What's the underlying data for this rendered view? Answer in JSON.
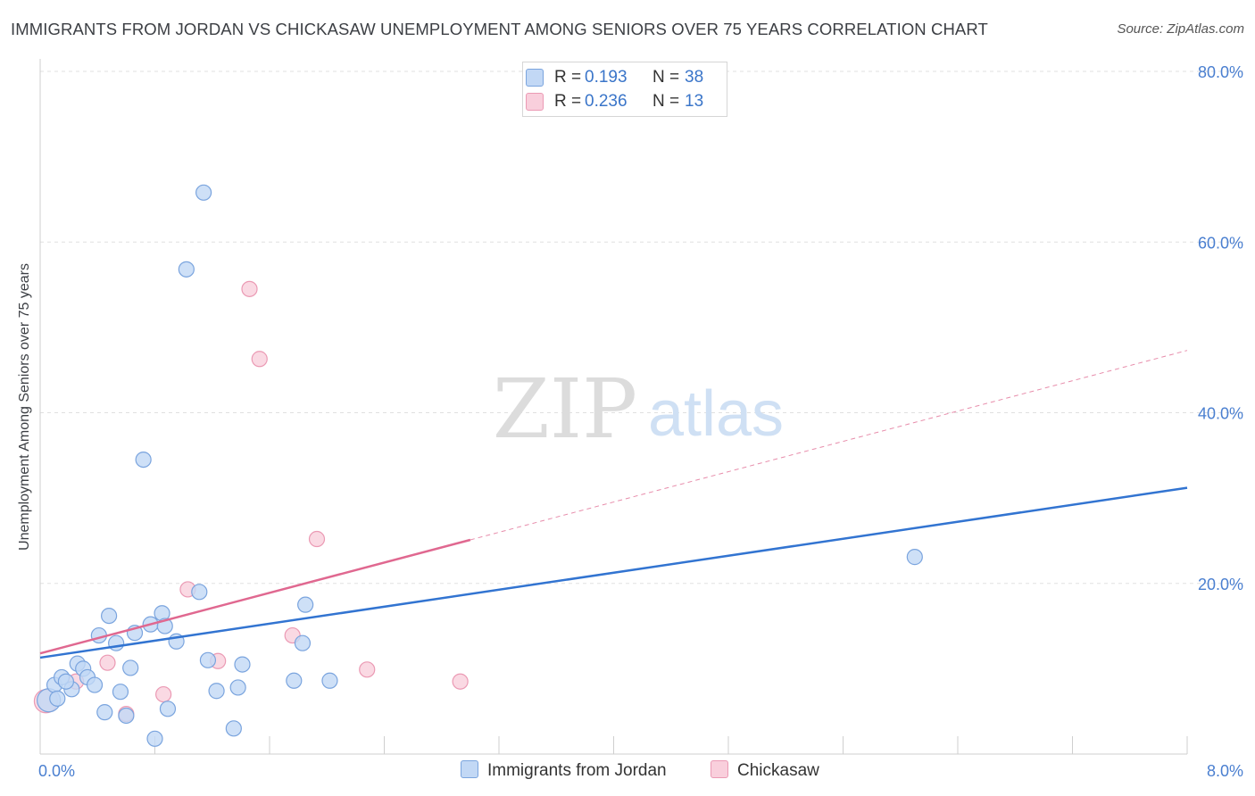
{
  "title": "IMMIGRANTS FROM JORDAN VS CHICKASAW UNEMPLOYMENT AMONG SENIORS OVER 75 YEARS CORRELATION CHART",
  "source": "Source: ZipAtlas.com",
  "watermark": {
    "zip": "ZIP",
    "atlas": "atlas"
  },
  "legend": {
    "rows": [
      {
        "r_label": "R =",
        "r_value": "0.193",
        "n_label": "N =",
        "n_value": "38"
      },
      {
        "r_label": "R =",
        "r_value": "0.236",
        "n_label": "N =",
        "n_value": "13"
      }
    ]
  },
  "bottom_legend": {
    "series1": "Immigrants from Jordan",
    "series2": "Chickasaw"
  },
  "colors": {
    "blue_fill": "#c2d8f5",
    "blue_stroke": "#7aa4de",
    "blue_line": "#3274d1",
    "pink_fill": "#f9cfdc",
    "pink_stroke": "#eb9ab4",
    "pink_line": "#e06890",
    "tick": "#4a7fd0",
    "grid": "#e0e0e0"
  },
  "chart_data": {
    "type": "scatter",
    "title": "IMMIGRANTS FROM JORDAN VS CHICKASAW UNEMPLOYMENT AMONG SENIORS OVER 75 YEARS CORRELATION CHART",
    "xlabel": "",
    "ylabel": "Unemployment Among Seniors over 75 years",
    "xlim": [
      0,
      8
    ],
    "ylim": [
      0,
      80
    ],
    "x_tick_labels": [
      "0.0%",
      "8.0%"
    ],
    "y_ticks": [
      20,
      40,
      60,
      80
    ],
    "y_tick_labels": [
      "20.0%",
      "40.0%",
      "60.0%",
      "80.0%"
    ],
    "series": [
      {
        "name": "Immigrants from Jordan",
        "r": 0.193,
        "n": 38,
        "trend": {
          "x": [
            0,
            8
          ],
          "y": [
            11.3,
            31.2
          ],
          "style": "solid"
        },
        "points": [
          {
            "x": 0.06,
            "y": 6.3,
            "big": true
          },
          {
            "x": 0.1,
            "y": 8.1
          },
          {
            "x": 0.15,
            "y": 9.0
          },
          {
            "x": 0.22,
            "y": 7.6
          },
          {
            "x": 0.26,
            "y": 10.6
          },
          {
            "x": 0.3,
            "y": 10.0
          },
          {
            "x": 0.33,
            "y": 9.0
          },
          {
            "x": 0.38,
            "y": 8.1
          },
          {
            "x": 0.41,
            "y": 13.9
          },
          {
            "x": 0.45,
            "y": 4.9
          },
          {
            "x": 0.48,
            "y": 16.2
          },
          {
            "x": 0.53,
            "y": 13.0
          },
          {
            "x": 0.56,
            "y": 7.3
          },
          {
            "x": 0.63,
            "y": 10.1
          },
          {
            "x": 0.66,
            "y": 14.2
          },
          {
            "x": 0.72,
            "y": 34.5
          },
          {
            "x": 0.77,
            "y": 15.2
          },
          {
            "x": 0.8,
            "y": 1.8
          },
          {
            "x": 0.85,
            "y": 16.5
          },
          {
            "x": 0.87,
            "y": 15.0
          },
          {
            "x": 0.89,
            "y": 5.3
          },
          {
            "x": 0.95,
            "y": 13.2
          },
          {
            "x": 1.02,
            "y": 56.8
          },
          {
            "x": 1.11,
            "y": 19.0
          },
          {
            "x": 1.14,
            "y": 65.8
          },
          {
            "x": 1.17,
            "y": 11.0
          },
          {
            "x": 1.23,
            "y": 7.4
          },
          {
            "x": 1.38,
            "y": 7.8
          },
          {
            "x": 1.41,
            "y": 10.5
          },
          {
            "x": 1.35,
            "y": 3.0
          },
          {
            "x": 1.77,
            "y": 8.6
          },
          {
            "x": 1.83,
            "y": 13.0
          },
          {
            "x": 1.85,
            "y": 17.5
          },
          {
            "x": 2.02,
            "y": 8.6
          },
          {
            "x": 6.1,
            "y": 23.1
          },
          {
            "x": 0.6,
            "y": 4.5
          },
          {
            "x": 0.18,
            "y": 8.5
          },
          {
            "x": 0.12,
            "y": 6.5
          }
        ]
      },
      {
        "name": "Chickasaw",
        "r": 0.236,
        "n": 13,
        "trend": {
          "x": [
            0,
            3.0,
            8
          ],
          "y": [
            11.8,
            25.1,
            47.3
          ],
          "style": "solid-then-dashed"
        },
        "points": [
          {
            "x": 0.04,
            "y": 6.2,
            "big": true
          },
          {
            "x": 0.25,
            "y": 8.5
          },
          {
            "x": 0.47,
            "y": 10.7
          },
          {
            "x": 0.6,
            "y": 4.7
          },
          {
            "x": 0.86,
            "y": 7.0
          },
          {
            "x": 1.03,
            "y": 19.3
          },
          {
            "x": 1.24,
            "y": 10.9
          },
          {
            "x": 1.46,
            "y": 54.5
          },
          {
            "x": 1.53,
            "y": 46.3
          },
          {
            "x": 1.76,
            "y": 13.9
          },
          {
            "x": 1.93,
            "y": 25.2
          },
          {
            "x": 2.28,
            "y": 9.9
          },
          {
            "x": 2.93,
            "y": 8.5
          }
        ]
      }
    ]
  }
}
